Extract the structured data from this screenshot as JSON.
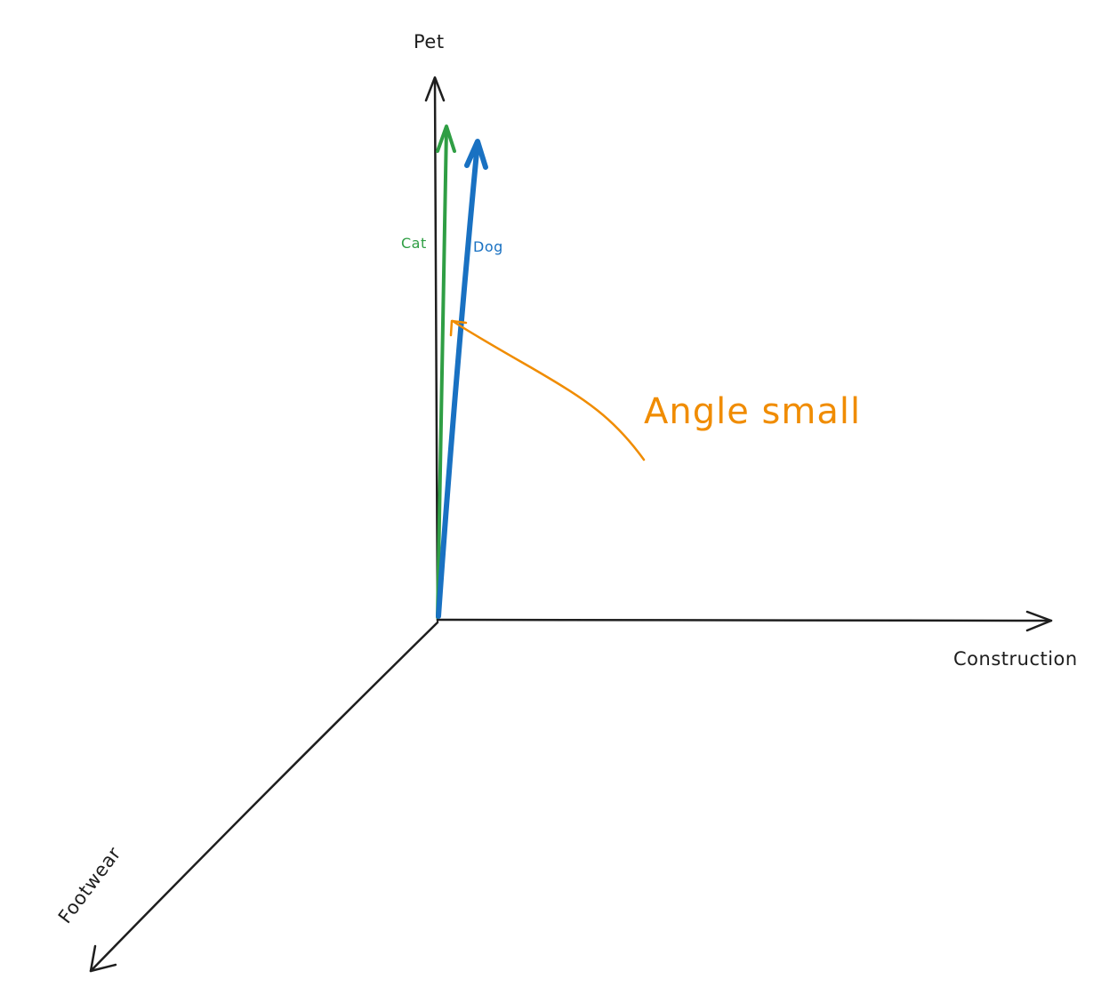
{
  "axes": {
    "vertical": "Pet",
    "horizontal": "Construction",
    "diagonal": "Footwear"
  },
  "vectors": [
    {
      "label": "Cat",
      "color": "#2f9e44"
    },
    {
      "label": "Dog",
      "color": "#1971c2"
    }
  ],
  "annotation": {
    "text": "Angle small",
    "color": "#f08c00"
  },
  "colors": {
    "axis": "#1e1e1e",
    "background": "#ffffff"
  }
}
